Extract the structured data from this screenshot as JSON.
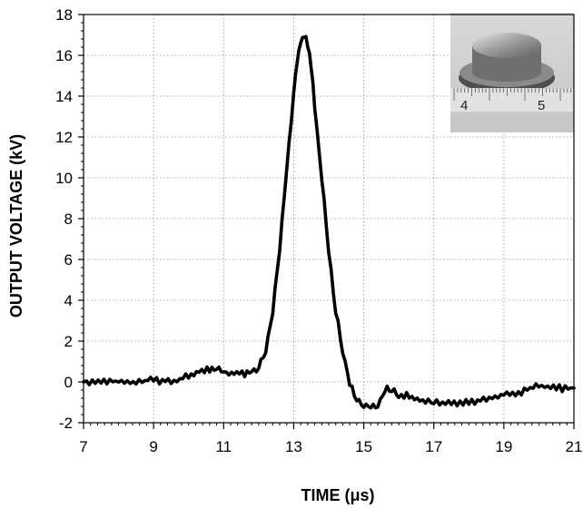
{
  "chart_data": {
    "type": "line",
    "xlabel": "TIME (μs)",
    "ylabel": "OUTPUT VOLTAGE (kV)",
    "xlim": [
      7,
      21
    ],
    "ylim": [
      -2,
      18
    ],
    "x_ticks": [
      7,
      9,
      11,
      13,
      15,
      17,
      19,
      21
    ],
    "y_ticks": [
      -2,
      0,
      2,
      4,
      6,
      8,
      10,
      12,
      14,
      16,
      18
    ],
    "grid": true,
    "inset": {
      "description_visible": "photograph of a disc-shaped sample resting on a ruler",
      "ruler_labels": [
        "4",
        "5"
      ]
    },
    "series": [
      {
        "x": [
          7.0,
          7.5,
          8.0,
          8.5,
          9.0,
          9.5,
          10.0,
          10.3,
          10.6,
          10.8,
          11.0,
          11.3,
          11.6,
          11.8,
          12.0,
          12.2,
          12.4,
          12.6,
          12.8,
          13.0,
          13.1,
          13.2,
          13.3,
          13.4,
          13.5,
          13.6,
          13.8,
          14.0,
          14.2,
          14.4,
          14.6,
          14.8,
          15.0,
          15.2,
          15.4,
          15.6,
          15.8,
          16.0,
          16.3,
          16.6,
          17.0,
          17.5,
          18.0,
          18.5,
          19.0,
          19.5,
          20.0,
          20.5,
          21.0
        ],
        "y": [
          0.0,
          0.1,
          0.0,
          0.0,
          0.1,
          0.0,
          0.3,
          0.5,
          0.6,
          0.7,
          0.5,
          0.4,
          0.4,
          0.5,
          0.7,
          1.5,
          3.5,
          6.5,
          10.5,
          14.2,
          15.8,
          16.7,
          17.0,
          16.5,
          15.5,
          13.5,
          10.0,
          6.5,
          3.5,
          1.5,
          0.0,
          -0.8,
          -1.2,
          -1.2,
          -1.2,
          -0.4,
          -0.3,
          -0.6,
          -0.7,
          -0.9,
          -1.0,
          -1.1,
          -1.0,
          -0.8,
          -0.6,
          -0.5,
          -0.2,
          -0.3,
          -0.3
        ]
      }
    ]
  }
}
